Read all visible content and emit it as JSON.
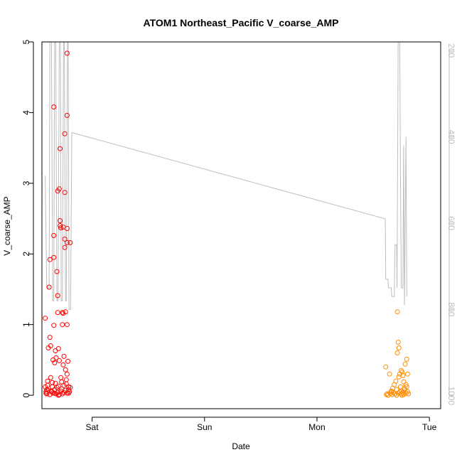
{
  "chart_data": {
    "type": "scatter",
    "title": "ATOM1 Northeast_Pacific V_coarse_AMP",
    "xlabel": "Date",
    "ylabel": "V_coarse_AMP",
    "x_ticks": [
      {
        "x": "Sat 00:00",
        "label": "Sat"
      },
      {
        "x": "Sun 00:00",
        "label": "Sun"
      },
      {
        "x": "Mon 00:00",
        "label": "Mon"
      },
      {
        "x": "Tue 00:00",
        "label": "Tue"
      }
    ],
    "xlim": [
      "Fri 13:18",
      "Tue 02:24"
    ],
    "ylim": [
      -0.19,
      5
    ],
    "yticks": [
      0,
      1,
      2,
      3,
      4,
      5
    ],
    "y2": {
      "label": "",
      "reversed": true,
      "lim": [
        180,
        1030
      ],
      "ticks": [
        200,
        400,
        600,
        800,
        1000
      ],
      "color": "#bebebe"
    },
    "grid": false,
    "legend": "none",
    "series": [
      {
        "color": "#ff0000",
        "marker": "open-circle",
        "points": [
          [
            "Fri 14:00",
            1.09
          ],
          [
            "Fri 14:00",
            0.12
          ],
          [
            "Fri 14:10",
            0.03
          ],
          [
            "Fri 14:20",
            0.08
          ],
          [
            "Fri 14:30",
            0.14
          ],
          [
            "Fri 14:40",
            0.67
          ],
          [
            "Fri 14:50",
            1.53
          ],
          [
            "Fri 15:00",
            1.92
          ],
          [
            "Fri 15:00",
            0.82
          ],
          [
            "Fri 15:10",
            0.7
          ],
          [
            "Fri 15:10",
            0.25
          ],
          [
            "Fri 15:20",
            0.05
          ],
          [
            "Fri 15:30",
            0.18
          ],
          [
            "Fri 15:40",
            0.5
          ],
          [
            "Fri 15:50",
            4.08
          ],
          [
            "Fri 15:50",
            2.26
          ],
          [
            "Fri 15:50",
            1.95
          ],
          [
            "Fri 15:50",
            0.99
          ],
          [
            "Fri 16:00",
            0.46
          ],
          [
            "Fri 16:00",
            0.03
          ],
          [
            "Fri 16:10",
            0.63
          ],
          [
            "Fri 16:20",
            0.53
          ],
          [
            "Fri 16:30",
            1.75
          ],
          [
            "Fri 16:30",
            0.11
          ],
          [
            "Fri 16:40",
            2.89
          ],
          [
            "Fri 16:40",
            1.41
          ],
          [
            "Fri 16:40",
            1.17
          ],
          [
            "Fri 16:50",
            0.66
          ],
          [
            "Fri 16:50",
            0.0
          ],
          [
            "Fri 17:00",
            2.92
          ],
          [
            "Fri 17:00",
            0.49
          ],
          [
            "Fri 17:10",
            3.49
          ],
          [
            "Fri 17:10",
            2.47
          ],
          [
            "Fri 17:10",
            2.4
          ],
          [
            "Fri 17:20",
            2.37
          ],
          [
            "Fri 17:20",
            0.25
          ],
          [
            "Fri 17:30",
            0.09
          ],
          [
            "Fri 17:40",
            1.17
          ],
          [
            "Fri 17:40",
            1.0
          ],
          [
            "Fri 17:50",
            2.38
          ],
          [
            "Fri 17:50",
            1.16
          ],
          [
            "Fri 17:50",
            0.43
          ],
          [
            "Fri 18:00",
            0.55
          ],
          [
            "Fri 18:00",
            0.14
          ],
          [
            "Fri 18:10",
            3.7
          ],
          [
            "Fri 18:10",
            2.87
          ],
          [
            "Fri 18:10",
            2.21
          ],
          [
            "Fri 18:10",
            2.09
          ],
          [
            "Fri 18:20",
            1.18
          ],
          [
            "Fri 18:20",
            0.36
          ],
          [
            "Fri 18:30",
            0.22
          ],
          [
            "Fri 18:40",
            4.84
          ],
          [
            "Fri 18:40",
            3.96
          ],
          [
            "Fri 18:40",
            2.36
          ],
          [
            "Fri 18:40",
            2.16
          ],
          [
            "Fri 18:40",
            1.0
          ],
          [
            "Fri 18:40",
            0.3
          ],
          [
            "Fri 18:50",
            0.48
          ],
          [
            "Fri 19:00",
            0.03
          ],
          [
            "Fri 19:20",
            2.16
          ],
          [
            "Fri 19:20",
            0.11
          ],
          [
            "Fri 14:10",
            0.05
          ],
          [
            "Fri 14:20",
            0.02
          ],
          [
            "Fri 14:40",
            0.07
          ],
          [
            "Fri 15:00",
            0.01
          ],
          [
            "Fri 15:20",
            0.06
          ],
          [
            "Fri 15:40",
            0.03
          ],
          [
            "Fri 16:00",
            0.08
          ],
          [
            "Fri 16:20",
            0.02
          ],
          [
            "Fri 16:40",
            0.04
          ],
          [
            "Fri 17:00",
            0.01
          ],
          [
            "Fri 17:20",
            0.06
          ],
          [
            "Fri 17:40",
            0.02
          ],
          [
            "Fri 18:00",
            0.04
          ],
          [
            "Fri 18:20",
            0.07
          ],
          [
            "Fri 18:40",
            0.03
          ],
          [
            "Fri 19:00",
            0.08
          ],
          [
            "Fri 19:10",
            0.05
          ],
          [
            "Fri 14:30",
            0.2
          ],
          [
            "Fri 15:30",
            0.12
          ],
          [
            "Fri 16:10",
            0.17
          ],
          [
            "Fri 16:50",
            0.13
          ],
          [
            "Fri 17:30",
            0.19
          ],
          [
            "Fri 18:30",
            0.16
          ],
          [
            "Fri 19:00",
            0.12
          ]
        ]
      },
      {
        "color": "#ff8c00",
        "marker": "open-circle",
        "points": [
          [
            "Mon 14:40",
            0.4
          ],
          [
            "Mon 14:50",
            0.01
          ],
          [
            "Mon 15:00",
            0.02
          ],
          [
            "Mon 15:10",
            0.0
          ],
          [
            "Mon 15:30",
            0.3
          ],
          [
            "Mon 15:40",
            0.03
          ],
          [
            "Mon 15:50",
            0.06
          ],
          [
            "Mon 16:00",
            0.01
          ],
          [
            "Mon 16:10",
            0.1
          ],
          [
            "Mon 16:20",
            0.04
          ],
          [
            "Mon 16:30",
            0.15
          ],
          [
            "Mon 16:40",
            0.02
          ],
          [
            "Mon 16:50",
            0.2
          ],
          [
            "Mon 17:00",
            0.08
          ],
          [
            "Mon 17:10",
            1.18
          ],
          [
            "Mon 17:10",
            0.6
          ],
          [
            "Mon 17:20",
            0.75
          ],
          [
            "Mon 17:20",
            0.03
          ],
          [
            "Mon 17:30",
            0.67
          ],
          [
            "Mon 17:30",
            0.26
          ],
          [
            "Mon 17:40",
            0.05
          ],
          [
            "Mon 17:50",
            0.12
          ],
          [
            "Mon 18:00",
            0.35
          ],
          [
            "Mon 18:00",
            0.02
          ],
          [
            "Mon 18:10",
            0.33
          ],
          [
            "Mon 18:10",
            0.0
          ],
          [
            "Mon 18:20",
            0.28
          ],
          [
            "Mon 18:20",
            0.04
          ],
          [
            "Mon 18:30",
            0.01
          ],
          [
            "Mon 18:30",
            0.19
          ],
          [
            "Mon 18:40",
            0.08
          ],
          [
            "Mon 18:50",
            0.44
          ],
          [
            "Mon 19:00",
            0.03
          ],
          [
            "Mon 19:10",
            0.51
          ],
          [
            "Mon 19:10",
            0.12
          ],
          [
            "Mon 19:20",
            0.3
          ],
          [
            "Mon 19:20",
            0.05
          ],
          [
            "Mon 19:30",
            0.02
          ],
          [
            "Mon 17:40",
            0.3
          ],
          [
            "Mon 18:40",
            0.1
          ],
          [
            "Mon 16:00",
            0.05
          ],
          [
            "Mon 17:00",
            0.0
          ],
          [
            "Mon 18:00",
            0.06
          ],
          [
            "Mon 19:00",
            0.15
          ]
        ]
      },
      {
        "type": "line",
        "axis": "y2",
        "color": "#bebebe",
        "points": [
          [
            "Fri 14:00",
            490
          ],
          [
            "Fri 14:20",
            750
          ],
          [
            "Fri 14:50",
            750
          ],
          [
            "Fri 15:00",
            180
          ],
          [
            "Fri 15:20",
            180
          ],
          [
            "Fri 15:35",
            780
          ],
          [
            "Fri 15:50",
            780
          ],
          [
            "Fri 16:00",
            180
          ],
          [
            "Fri 16:15",
            180
          ],
          [
            "Fri 16:30",
            780
          ],
          [
            "Fri 16:45",
            780
          ],
          [
            "Fri 17:00",
            180
          ],
          [
            "Fri 17:15",
            180
          ],
          [
            "Fri 17:25",
            780
          ],
          [
            "Fri 17:40",
            780
          ],
          [
            "Fri 17:55",
            180
          ],
          [
            "Fri 18:05",
            180
          ],
          [
            "Fri 18:20",
            780
          ],
          [
            "Fri 18:30",
            780
          ],
          [
            "Fri 18:45",
            180
          ],
          [
            "Fri 18:55",
            180
          ],
          [
            "Fri 19:05",
            800
          ],
          [
            "Fri 19:25",
            800
          ],
          [
            "Fri 19:40",
            390
          ],
          [
            "Mon 14:35",
            590
          ],
          [
            "Mon 14:40",
            730
          ],
          [
            "Mon 15:10",
            730
          ],
          [
            "Mon 15:15",
            750
          ],
          [
            "Mon 15:50",
            750
          ],
          [
            "Mon 16:00",
            770
          ],
          [
            "Mon 16:30",
            770
          ],
          [
            "Mon 16:40",
            650
          ],
          [
            "Mon 17:00",
            650
          ],
          [
            "Mon 17:05",
            750
          ],
          [
            "Mon 17:20",
            180
          ],
          [
            "Mon 17:40",
            180
          ],
          [
            "Mon 17:50",
            500
          ],
          [
            "Mon 18:00",
            750
          ],
          [
            "Mon 18:20",
            750
          ],
          [
            "Mon 18:30",
            420
          ],
          [
            "Mon 18:40",
            790
          ],
          [
            "Mon 19:00",
            400
          ],
          [
            "Mon 19:10",
            770
          ]
        ]
      }
    ]
  }
}
